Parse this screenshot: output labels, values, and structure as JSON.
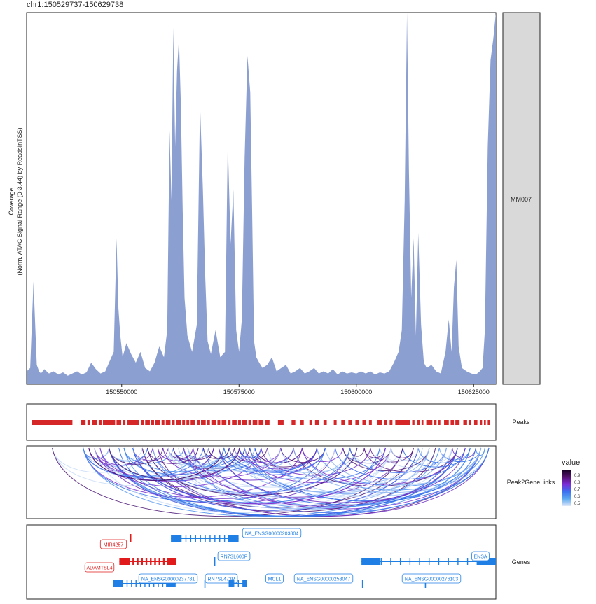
{
  "region_title": "chr1:150529737-150629738",
  "coverage": {
    "ylabel_line1": "Coverage",
    "ylabel_line2": "(Norm. ATAC Signal Range (0-3.44) by ReadsInTSS)",
    "sample_label": "MM007",
    "fill_color": "#8c9fd1",
    "ylim": [
      0,
      3.44
    ]
  },
  "peaks_label": "Peaks",
  "links_label": "Peak2GeneLinks",
  "genes_label": "Genes",
  "legend": {
    "title": "value",
    "ticks": [
      "0.9",
      "0.8",
      "0.7",
      "0.6",
      "0.5"
    ],
    "stop_colors": [
      "#dfe8f8",
      "#5aa8f0",
      "#3b6ff0",
      "#7c2bd6",
      "#55116f",
      "#140020"
    ]
  },
  "colors": {
    "peak": "#d62728",
    "gene_plus": "#1f7fe5",
    "gene_minus": "#e11b1b"
  },
  "chart_data": {
    "type": "area",
    "xlim": [
      150529737,
      150629738
    ],
    "x_ticks": [
      150550000,
      150575000,
      150600000,
      150625000
    ],
    "x_tick_labels": [
      "150550000",
      "150575000",
      "150600000",
      "150625000"
    ],
    "ylim": [
      0,
      3.44
    ],
    "x": [
      150529737,
      150530500,
      150531200,
      150531900,
      150532400,
      150532800,
      150533500,
      150534500,
      150535500,
      150536500,
      150537500,
      150538500,
      150539500,
      150540500,
      150541500,
      150542500,
      150543500,
      150544500,
      150545500,
      150546500,
      150547500,
      150548300,
      150548900,
      150549300,
      150549700,
      150550200,
      150551000,
      150552000,
      150553000,
      150554000,
      150555000,
      150556000,
      150557000,
      150558000,
      150559000,
      150559700,
      150560200,
      150560600,
      150561000,
      150561400,
      150561800,
      150562200,
      150562600,
      150563000,
      150563400,
      150564000,
      150565000,
      150566000,
      150566700,
      150567300,
      150567800,
      150568300,
      150569000,
      150570000,
      150571000,
      150572000,
      150572600,
      150573200,
      150573800,
      150574400,
      150575000,
      150575600,
      150576200,
      150576800,
      150577400,
      150577800,
      150578200,
      150578700,
      150579300,
      150580000,
      150581000,
      150582000,
      150583000,
      150584000,
      150585000,
      150586000,
      150587000,
      150588000,
      150589000,
      150590000,
      150591000,
      150592000,
      150593000,
      150594000,
      150595000,
      150596000,
      150597000,
      150598000,
      150599000,
      150600000,
      150601000,
      150602000,
      150603000,
      150604000,
      150605000,
      150606000,
      150607000,
      150608000,
      150609000,
      150609700,
      150610300,
      150610800,
      150611200,
      150611700,
      150612200,
      150612700,
      150613200,
      150613800,
      150614400,
      150615000,
      150616000,
      150617000,
      150618000,
      150619000,
      150619700,
      150620300,
      150620800,
      150621300,
      150621800,
      150622500,
      150623500,
      150624500,
      150625500,
      150626300,
      150626900,
      150627400,
      150628000,
      150628600,
      150629200,
      150629738
    ],
    "y": [
      0.12,
      0.15,
      0.95,
      0.18,
      0.12,
      0.1,
      0.14,
      0.1,
      0.12,
      0.09,
      0.11,
      0.08,
      0.1,
      0.12,
      0.09,
      0.11,
      0.2,
      0.14,
      0.1,
      0.12,
      0.22,
      0.3,
      1.35,
      0.7,
      0.45,
      0.25,
      0.38,
      0.28,
      0.2,
      0.3,
      0.15,
      0.12,
      0.2,
      0.35,
      0.25,
      0.5,
      2.35,
      1.7,
      3.3,
      2.2,
      2.9,
      3.2,
      2.6,
      1.6,
      0.8,
      0.45,
      0.3,
      0.55,
      2.6,
      1.8,
      1.0,
      0.4,
      0.28,
      0.5,
      0.25,
      0.3,
      2.25,
      1.3,
      1.8,
      0.5,
      0.3,
      0.6,
      2.1,
      3.04,
      2.7,
      1.6,
      0.4,
      0.25,
      0.2,
      0.15,
      0.18,
      0.25,
      0.12,
      0.15,
      0.18,
      0.1,
      0.12,
      0.15,
      0.1,
      0.12,
      0.15,
      0.1,
      0.12,
      0.1,
      0.14,
      0.09,
      0.12,
      0.1,
      0.11,
      0.1,
      0.12,
      0.1,
      0.12,
      0.09,
      0.11,
      0.1,
      0.12,
      0.2,
      0.3,
      0.5,
      1.7,
      3.44,
      2.0,
      0.8,
      1.35,
      0.45,
      1.4,
      0.55,
      0.2,
      0.15,
      0.18,
      0.12,
      0.1,
      0.3,
      0.6,
      0.3,
      0.9,
      1.15,
      0.35,
      0.15,
      0.12,
      0.1,
      0.09,
      0.12,
      0.15,
      0.5,
      2.2,
      3.0,
      3.2,
      3.44
    ],
    "peak_intervals": [
      [
        150530900,
        150539500
      ],
      [
        150541300,
        150542300
      ],
      [
        150542700,
        150543300
      ],
      [
        150543700,
        150544700
      ],
      [
        150545100,
        150545700
      ],
      [
        150546000,
        150548600
      ],
      [
        150548900,
        150549900
      ],
      [
        150550200,
        150550800
      ],
      [
        150551100,
        150553700
      ],
      [
        150554100,
        150554700
      ],
      [
        150555000,
        150556000
      ],
      [
        150556300,
        150556900
      ],
      [
        150557200,
        150558200
      ],
      [
        150558500,
        150559100
      ],
      [
        150559400,
        150560400
      ],
      [
        150560700,
        150561300
      ],
      [
        150561600,
        150562600
      ],
      [
        150562900,
        150563500
      ],
      [
        150563800,
        150564400
      ],
      [
        150564700,
        150565700
      ],
      [
        150566000,
        150566600
      ],
      [
        150566900,
        150567900
      ],
      [
        150568200,
        150568800
      ],
      [
        150569100,
        150570100
      ],
      [
        150570400,
        150571000
      ],
      [
        150571300,
        150572300
      ],
      [
        150572600,
        150573200
      ],
      [
        150573500,
        150574500
      ],
      [
        150574800,
        150575400
      ],
      [
        150575700,
        150576700
      ],
      [
        150577000,
        150577600
      ],
      [
        150577900,
        150578900
      ],
      [
        150579200,
        150580200
      ],
      [
        150580500,
        150581500
      ],
      [
        150583300,
        150584500
      ],
      [
        150586200,
        150587000
      ],
      [
        150588100,
        150588800
      ],
      [
        150590000,
        150590600
      ],
      [
        150591200,
        150592000
      ],
      [
        150593000,
        150593700
      ],
      [
        150595200,
        150595800
      ],
      [
        150596800,
        150597500
      ],
      [
        150598300,
        150599000
      ],
      [
        150599800,
        150600500
      ],
      [
        150601300,
        150602100
      ],
      [
        150602700,
        150603300
      ],
      [
        150604500,
        150605500
      ],
      [
        150605900,
        150606500
      ],
      [
        150607100,
        150607700
      ],
      [
        150608300,
        150611500
      ],
      [
        150611900,
        150612400
      ],
      [
        150612900,
        150613500
      ],
      [
        150613900,
        150614300
      ],
      [
        150614900,
        150616200
      ],
      [
        150616600,
        150617100
      ],
      [
        150617500,
        150617900
      ],
      [
        150618700,
        150619700
      ],
      [
        150620100,
        150620800
      ],
      [
        150621100,
        150622000
      ],
      [
        150622800,
        150623600
      ],
      [
        150624000,
        150624500
      ],
      [
        150625100,
        150625800
      ],
      [
        150626300,
        150626800
      ],
      [
        150627200,
        150627600
      ],
      [
        150628000,
        150628500
      ]
    ],
    "link_colors": [
      "#7a2fd0",
      "#4a8ff0",
      "#a3c7f5",
      "#5a1a8a",
      "#3e6ff0",
      "#c9dcf7",
      "#6b2bc4",
      "#2f6fe8",
      "#8fb6f2",
      "#4b1877"
    ],
    "genes": [
      {
        "name": "MIR4257",
        "strand": "-",
        "start": 150551900,
        "end": 150552100,
        "row": 1
      },
      {
        "name": "ADAMTSL4",
        "strand": "-",
        "start": 150549500,
        "end": 150561600,
        "row": 2
      },
      {
        "name": "NA_ENSG00000203804",
        "strand": "+",
        "start": 150560500,
        "end": 150574900,
        "row": 1
      },
      {
        "name": "RN7SL600P",
        "strand": "+",
        "start": 150569800,
        "end": 150570100,
        "row": 2
      },
      {
        "name": "NA_ENSG00000237781",
        "strand": "+",
        "start": 150548200,
        "end": 150561500,
        "row": 3
      },
      {
        "name": "RN7SL473P",
        "strand": "+",
        "start": 150567700,
        "end": 150567900,
        "row": 3
      },
      {
        "name": "MCL1",
        "strand": "+",
        "start": 150572800,
        "end": 150576700,
        "row": 3
      },
      {
        "name": "NA_ENSG00000253047",
        "strand": "+",
        "start": 150601300,
        "end": 150601500,
        "row": 3
      },
      {
        "name": "NA_ENSG00000276103",
        "strand": "+",
        "start": 150614700,
        "end": 150614900,
        "row": 3
      },
      {
        "name": "ENSA",
        "strand": "+",
        "start": 150601100,
        "end": 150629738,
        "row": 2
      }
    ]
  }
}
